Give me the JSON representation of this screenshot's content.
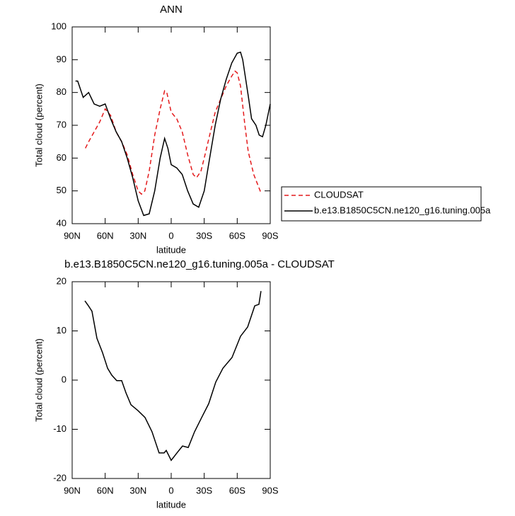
{
  "chart_data": [
    {
      "type": "line",
      "title": "ANN",
      "xlabel": "latitude",
      "ylabel": "Total cloud (percent)",
      "xlim": [
        90,
        -90
      ],
      "xticks": [
        {
          "value": 90,
          "label": "90N"
        },
        {
          "value": 60,
          "label": "60N"
        },
        {
          "value": 30,
          "label": "30N"
        },
        0,
        {
          "value": -30,
          "label": "30S"
        },
        {
          "value": -60,
          "label": "60S"
        },
        {
          "value": -90,
          "label": "90S"
        }
      ],
      "ylim": [
        40,
        100
      ],
      "yticks": [
        40,
        50,
        60,
        70,
        80,
        90,
        100
      ],
      "legend": "right",
      "series": [
        {
          "name": "CLOUDSAT",
          "color": "#e41a1c",
          "line_style": "dashed",
          "x": [
            78,
            75,
            70,
            65,
            60,
            55,
            50,
            45,
            40,
            35,
            30,
            27,
            24,
            20,
            15,
            10,
            6,
            4,
            0,
            -5,
            -10,
            -15,
            -20,
            -23,
            -27,
            -30,
            -35,
            -40,
            -45,
            -50,
            -55,
            -58,
            -60,
            -63,
            -67,
            -70,
            -75,
            -82
          ],
          "values": [
            63,
            65,
            68,
            71,
            75,
            73,
            68,
            65,
            61,
            55,
            50,
            49,
            50,
            56,
            67,
            75,
            80.5,
            80,
            74,
            72,
            68,
            61,
            55,
            54,
            56,
            60,
            67,
            74,
            78,
            82,
            85,
            86.5,
            86,
            82,
            70,
            62,
            55,
            49
          ]
        },
        {
          "name": "b.e13.B1850C5CN.ne120_g16.tuning.005a",
          "color": "#000000",
          "line_style": "solid",
          "x": [
            87,
            85,
            80,
            75,
            70,
            65,
            60,
            55,
            50,
            45,
            40,
            35,
            30,
            25,
            20,
            15,
            10,
            6,
            3,
            0,
            -5,
            -10,
            -15,
            -20,
            -25,
            -30,
            -35,
            -40,
            -45,
            -50,
            -55,
            -60,
            -63,
            -65,
            -70,
            -73,
            -77,
            -80,
            -83,
            -86,
            -90
          ],
          "values": [
            83.5,
            83.5,
            78.5,
            80,
            76.5,
            75.8,
            76.5,
            72,
            68,
            65,
            60,
            54,
            47,
            42.5,
            43,
            50,
            60,
            66,
            63,
            58,
            57,
            55,
            50,
            46,
            45,
            50,
            60,
            70,
            78,
            84,
            89,
            92,
            92.3,
            90,
            79,
            72,
            70,
            67,
            66.5,
            70,
            76.5
          ]
        }
      ]
    },
    {
      "type": "line",
      "title": "b.e13.B1850C5CN.ne120_g16.tuning.005a - CLOUDSAT",
      "xlabel": "latitude",
      "ylabel": "Total cloud (percent)",
      "xlim": [
        90,
        -90
      ],
      "xticks": [
        {
          "value": 90,
          "label": "90N"
        },
        {
          "value": 60,
          "label": "60N"
        },
        {
          "value": 30,
          "label": "30N"
        },
        0,
        {
          "value": -30,
          "label": "30S"
        },
        {
          "value": -60,
          "label": "60S"
        },
        {
          "value": -90,
          "label": "90S"
        }
      ],
      "ylim": [
        -20,
        20
      ],
      "yticks": [
        -20,
        -10,
        0,
        10,
        20
      ],
      "series": [
        {
          "color": "#000000",
          "line_style": "solid",
          "x": [
            78.4,
            75.2,
            72,
            67.5,
            62.4,
            57.8,
            54,
            49.5,
            45,
            41.1,
            36.6,
            30.2,
            23.8,
            17.4,
            11,
            6.4,
            4.5,
            0,
            -5.2,
            -10.3,
            -15.5,
            -21.2,
            -27.7,
            -34.1,
            -40.5,
            -47,
            -55.3,
            -63,
            -69.5,
            -75.9,
            -79.7,
            -81.6
          ],
          "values": [
            16.1,
            15.1,
            14,
            8.5,
            5.6,
            2.4,
            1,
            -0.1,
            -0.1,
            -2.6,
            -5,
            -6.2,
            -7.6,
            -10.5,
            -14.8,
            -14.8,
            -14.3,
            -16.3,
            -14.8,
            -13.4,
            -13.7,
            -10.5,
            -7.6,
            -4.8,
            -0.4,
            2.4,
            4.6,
            8.9,
            10.8,
            15.1,
            15.4,
            18.1
          ]
        }
      ]
    }
  ]
}
